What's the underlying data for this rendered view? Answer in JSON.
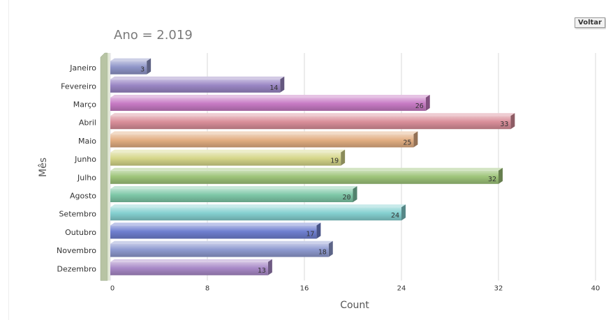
{
  "ui": {
    "back_button_label": "Voltar"
  },
  "chart_data": {
    "type": "bar",
    "orientation": "horizontal",
    "title": "Ano = 2.019",
    "xlabel": "Count",
    "ylabel": "Mês",
    "categories": [
      "Janeiro",
      "Fevereiro",
      "Março",
      "Abril",
      "Maio",
      "Junho",
      "Julho",
      "Agosto",
      "Setembro",
      "Outubro",
      "Novembro",
      "Dezembro"
    ],
    "values": [
      3,
      14,
      26,
      33,
      25,
      19,
      32,
      20,
      24,
      17,
      18,
      13
    ],
    "xlim": [
      0,
      40
    ],
    "xticks": [
      0,
      8,
      16,
      24,
      32,
      40
    ],
    "grid": true,
    "data_labels": true,
    "colors": [
      "#8f95c8",
      "#9a86c4",
      "#c77ac4",
      "#d98e9a",
      "#e2ae82",
      "#d5d68a",
      "#9ec47a",
      "#7ec8a8",
      "#84d0d0",
      "#6f7fd0",
      "#8e9ad0",
      "#a98ac8"
    ]
  }
}
